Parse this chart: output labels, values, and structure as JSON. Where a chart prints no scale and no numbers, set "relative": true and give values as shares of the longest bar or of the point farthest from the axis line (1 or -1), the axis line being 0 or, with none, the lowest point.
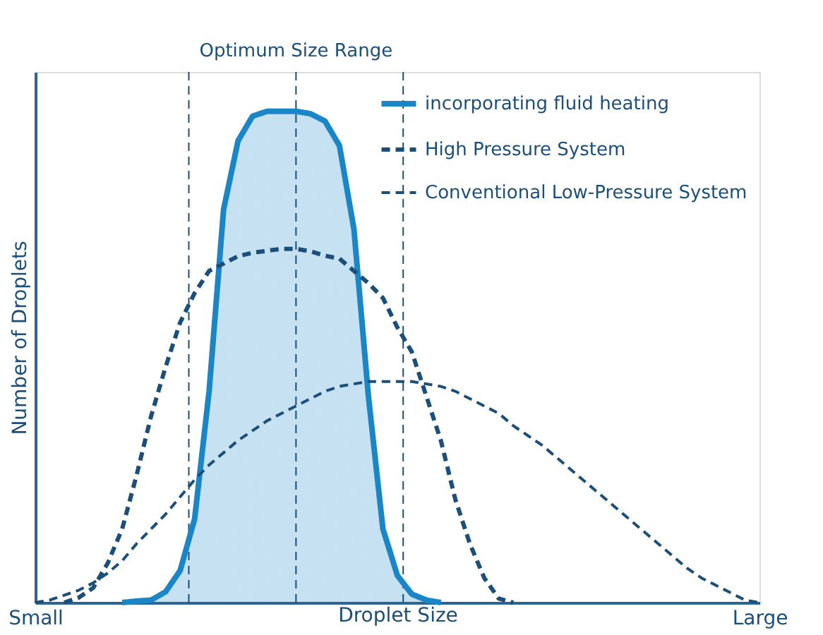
{
  "chart_data": {
    "type": "line",
    "relative": true,
    "xlabel": "Droplet Size",
    "ylabel": "Number of Droplets",
    "tick_labels": "x",
    "legend": "top right",
    "marker": "none",
    "categories": [
      "Small",
      null,
      null,
      null,
      null,
      null,
      null,
      null,
      null,
      null,
      null,
      null,
      null,
      null,
      null,
      null,
      null,
      null,
      null,
      null,
      null,
      null,
      null,
      null,
      null,
      null,
      null,
      null,
      null,
      null,
      null,
      null,
      null,
      null,
      null,
      null,
      null,
      null,
      null,
      null,
      null,
      null,
      null,
      null,
      null,
      null,
      null,
      null,
      null,
      null,
      "Large"
    ],
    "annotations": [
      "Optimum Size Range"
    ],
    "series": [
      {
        "name": "incorporating fluid heating",
        "type": "area",
        "color": "#1a86c8",
        "line_style": "solid",
        "values": [
          null,
          null,
          null,
          null,
          null,
          null,
          0,
          0.003,
          0.005,
          0.022,
          0.065,
          0.17,
          0.43,
          0.8,
          0.94,
          0.99,
          1.0,
          1.0,
          1.0,
          0.995,
          0.98,
          0.93,
          0.76,
          0.42,
          0.15,
          0.055,
          0.017,
          0.005,
          0,
          null,
          null,
          null,
          null,
          null,
          null,
          null,
          null,
          null,
          null,
          null,
          null,
          null,
          null,
          null,
          null,
          null,
          null,
          null,
          null,
          null,
          null
        ]
      },
      {
        "name": "High Pressure System",
        "type": "line",
        "color": "#1b4f7a",
        "line_style": "dashed",
        "values": [
          null,
          null,
          0,
          0.01,
          0.03,
          0.08,
          0.15,
          0.26,
          0.38,
          0.48,
          0.57,
          0.63,
          0.675,
          0.69,
          0.705,
          0.712,
          0.716,
          0.72,
          0.72,
          0.715,
          0.706,
          0.7,
          0.675,
          0.65,
          0.62,
          0.56,
          0.51,
          0.42,
          0.33,
          0.21,
          0.12,
          0.05,
          0.008,
          0,
          null,
          null,
          null,
          null,
          null,
          null,
          null,
          null,
          null,
          null,
          null,
          null,
          null,
          null,
          null,
          null,
          null
        ]
      },
      {
        "name": "Conventional Low-Pressure System",
        "type": "line",
        "color": "#1b4f7a",
        "line_style": "dashed",
        "values": [
          0,
          0.005,
          0.015,
          0.025,
          0.04,
          0.06,
          0.085,
          0.12,
          0.15,
          0.18,
          0.215,
          0.25,
          0.28,
          0.305,
          0.33,
          0.35,
          0.37,
          0.385,
          0.4,
          0.415,
          0.43,
          0.44,
          0.445,
          0.45,
          0.45,
          0.45,
          0.45,
          0.445,
          0.44,
          0.43,
          0.415,
          0.4,
          0.385,
          0.36,
          0.34,
          0.32,
          0.295,
          0.27,
          0.245,
          0.22,
          0.195,
          0.17,
          0.145,
          0.12,
          0.095,
          0.07,
          0.05,
          0.035,
          0.02,
          0.005,
          0
        ]
      }
    ]
  }
}
